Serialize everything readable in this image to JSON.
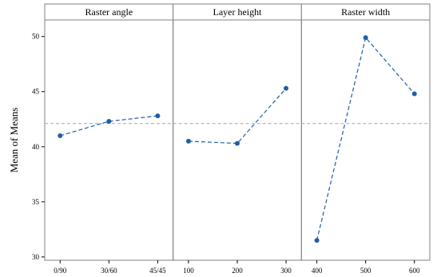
{
  "chart_data": {
    "type": "line",
    "ylabel": "Mean of Means",
    "ylim": [
      29.7,
      51.5
    ],
    "yticks": [
      30,
      35,
      40,
      45,
      50
    ],
    "reference_mean": 42.1,
    "colors": {
      "series": "#1f5fa8",
      "reference": "#a6a6a6",
      "header_bg": "#ffffff",
      "border": "#808080"
    },
    "panels": [
      {
        "name": "Raster angle",
        "categories": [
          "0/90",
          "30/60",
          "45/45"
        ],
        "values": [
          41.0,
          42.3,
          42.8
        ]
      },
      {
        "name": "Layer height",
        "categories": [
          "100",
          "200",
          "300"
        ],
        "values": [
          40.5,
          40.3,
          45.3
        ]
      },
      {
        "name": "Raster width",
        "categories": [
          "400",
          "500",
          "600"
        ],
        "values": [
          31.5,
          49.9,
          44.8
        ]
      }
    ]
  }
}
